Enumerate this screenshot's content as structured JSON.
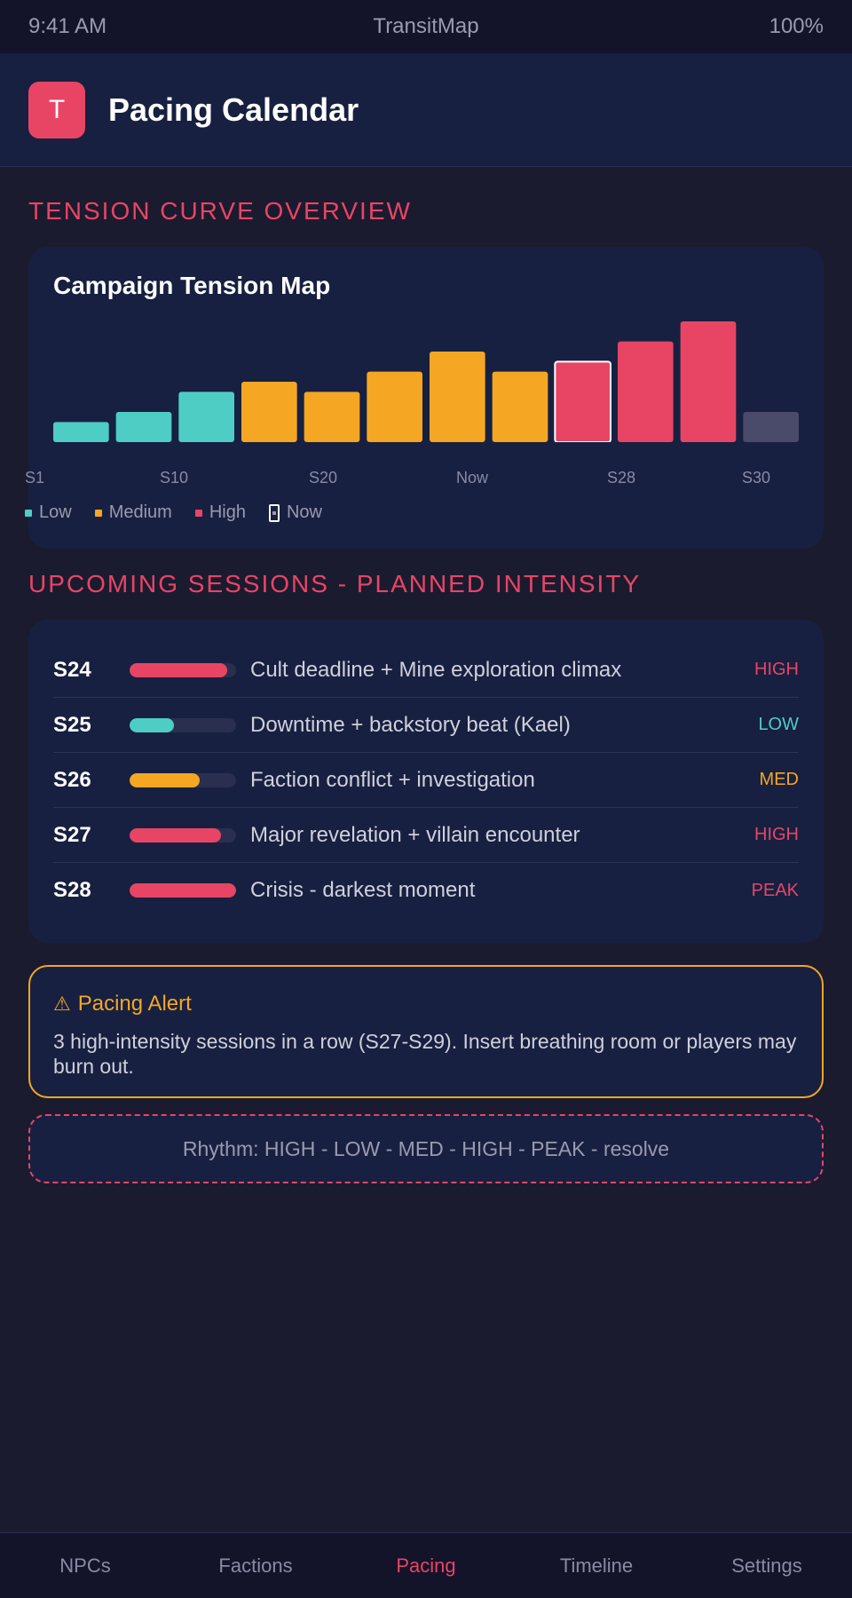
{
  "status_bar": {
    "time": "9:41 AM",
    "app": "TransitMap",
    "battery": "100%"
  },
  "header": {
    "logo_letter": "T",
    "title": "Pacing Calendar"
  },
  "sections": {
    "tension_heading": "TENSION CURVE OVERVIEW",
    "upcoming_heading": "UPCOMING SESSIONS - PLANNED INTENSITY"
  },
  "chart_data": {
    "type": "bar",
    "title": "Campaign Tension Map",
    "tick_labels": [
      "S1",
      "S10",
      "S20",
      "Now",
      "S28",
      "S30"
    ],
    "values": [
      2,
      3,
      5,
      6,
      5,
      7,
      9,
      7,
      8,
      10,
      12,
      3
    ],
    "levels": [
      "Low",
      "Low",
      "Low",
      "Medium",
      "Medium",
      "Medium",
      "Medium",
      "Medium",
      "High",
      "High",
      "High",
      "Future"
    ],
    "now_index": 8,
    "ylim": [
      0,
      12
    ],
    "legend": [
      {
        "label": "Low",
        "color": "#4ecdc4"
      },
      {
        "label": "Medium",
        "color": "#f5a623"
      },
      {
        "label": "High",
        "color": "#e84565"
      },
      {
        "label": "Now",
        "color": "#ffffff"
      }
    ],
    "future_color": "#4a4a6a"
  },
  "sessions": [
    {
      "id": "S24",
      "intensity": 0.92,
      "color": "#e84565",
      "description": "Cult deadline + Mine exploration climax",
      "level": "HIGH"
    },
    {
      "id": "S25",
      "intensity": 0.42,
      "color": "#4ecdc4",
      "description": "Downtime + backstory beat (Kael)",
      "level": "LOW"
    },
    {
      "id": "S26",
      "intensity": 0.66,
      "color": "#f5a623",
      "description": "Faction conflict + investigation",
      "level": "MED"
    },
    {
      "id": "S27",
      "intensity": 0.86,
      "color": "#e84565",
      "description": "Major revelation + villain encounter",
      "level": "HIGH"
    },
    {
      "id": "S28",
      "intensity": 1.0,
      "color": "#e84565",
      "description": "Crisis - darkest moment",
      "level": "PEAK"
    }
  ],
  "alert": {
    "icon": "warning-icon",
    "title": "Pacing Alert",
    "text": "3 high-intensity sessions in a row (S27-S29). Insert breathing room or players may burn out."
  },
  "rhythm": "Rhythm: HIGH - LOW - MED - HIGH - PEAK - resolve",
  "nav": {
    "items": [
      "NPCs",
      "Factions",
      "Pacing",
      "Timeline",
      "Settings"
    ],
    "active": "Pacing"
  },
  "colors": {
    "accent": "#e84565",
    "medium": "#f5a623",
    "low": "#4ecdc4"
  }
}
